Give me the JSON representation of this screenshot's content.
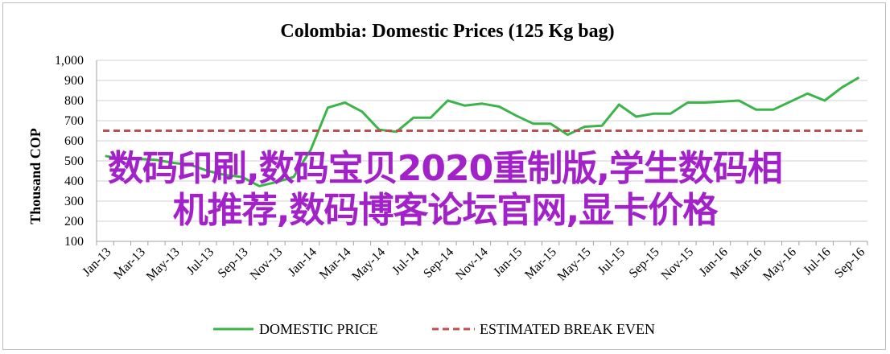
{
  "chart_data": {
    "type": "line",
    "title": "Colombia:  Domestic Prices (125 Kg bag)",
    "ylabel": "Thousand COP",
    "ylim": [
      100,
      1000
    ],
    "yticks": [
      "100",
      "200",
      "300",
      "400",
      "500",
      "600",
      "700",
      "800",
      "900",
      "1,000"
    ],
    "x_tick_labels": [
      "Jan-13",
      "Mar-13",
      "May-13",
      "Jul-13",
      "Sep-13",
      "Nov-13",
      "Jan-14",
      "Mar-14",
      "May-14",
      "Jul-14",
      "Sep-14",
      "Nov-14",
      "Jan-15",
      "Mar-15",
      "May-15",
      "Jul-15",
      "Sep-15",
      "Nov-15",
      "Jan-16",
      "Mar-16",
      "May-16",
      "Jul-16",
      "Sep-16"
    ],
    "grid": "horizontal",
    "legend_position": "bottom",
    "series": [
      {
        "name": "DOMESTIC PRICE",
        "color": "#3cb44b",
        "style": "solid",
        "values": [
          525,
          510,
          510,
          505,
          490,
          480,
          450,
          430,
          420,
          375,
          395,
          420,
          555,
          765,
          790,
          745,
          655,
          645,
          715,
          715,
          800,
          775,
          785,
          770,
          725,
          685,
          685,
          630,
          670,
          675,
          780,
          720,
          735,
          735,
          790,
          790,
          795,
          800,
          755,
          755,
          795,
          835,
          800,
          865,
          915
        ]
      },
      {
        "name": "ESTIMATED BREAK EVEN",
        "color": "#c0504d",
        "style": "dashed",
        "values": [
          650,
          650
        ]
      }
    ]
  },
  "overlay_text": {
    "line1": "数码印刷,数码宝贝2020重制版,学生数码相",
    "line2": "机推荐,数码博客论坛官网,显卡价格"
  }
}
